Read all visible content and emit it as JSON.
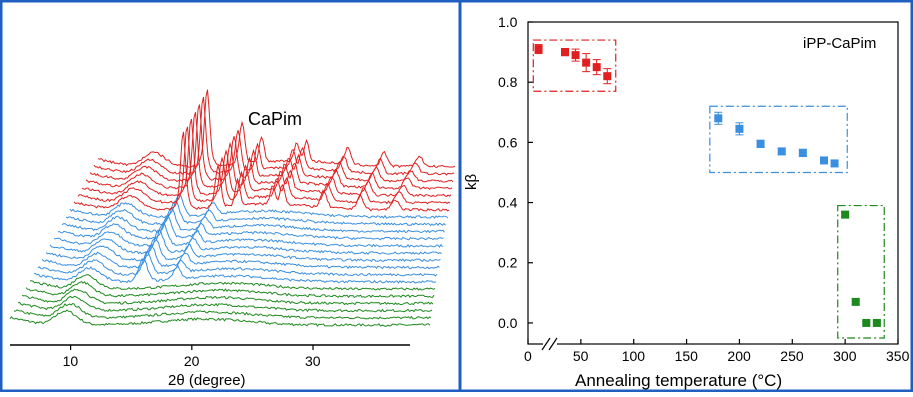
{
  "figure": {
    "frame_color": "#1f5fbf"
  },
  "colors": {
    "red": "#e02020",
    "blue": "#3a8fe0",
    "green": "#1e8a1e",
    "axis": "#000000"
  },
  "chart_data": [
    {
      "type": "line",
      "subtype": "stacked waterfall xrd patterns",
      "title": "CaPim",
      "xlabel": "2θ (degree)",
      "ylabel": "",
      "x_ticks": [
        10,
        20,
        30
      ],
      "xlim": [
        5,
        38
      ],
      "y_ticks": [],
      "series": [
        {
          "color": "red",
          "count": 7,
          "description": "Crystalline patterns with sharp peaks near 2θ≈14, 17, 18.5, 21.5, 22, 25.5, 28.5"
        },
        {
          "color": "blue",
          "count": 10,
          "description": "Amorphous-like halos with small peaks near 2θ≈14, 17"
        },
        {
          "color": "green",
          "count": 6,
          "description": "Amorphous halos with peak near 2θ≈14"
        }
      ]
    },
    {
      "type": "scatter",
      "title": "iPP-CaPim",
      "xlabel": "Annealing temperature (°C)",
      "ylabel": "kβ",
      "xlim": [
        0,
        350
      ],
      "ylim": [
        -0.07,
        1.0
      ],
      "x_ticks": [
        0,
        50,
        100,
        150,
        200,
        250,
        300,
        350
      ],
      "y_ticks": [
        0.0,
        0.2,
        0.4,
        0.6,
        0.8,
        1.0
      ],
      "axis_break": "x between 0 and 30",
      "groups": [
        {
          "color": "red",
          "points": [
            {
              "x": 10,
              "y": 0.91,
              "err": 0.015
            },
            {
              "x": 35,
              "y": 0.9,
              "err": 0.012
            },
            {
              "x": 45,
              "y": 0.89,
              "err": 0.02
            },
            {
              "x": 55,
              "y": 0.865,
              "err": 0.03
            },
            {
              "x": 65,
              "y": 0.85,
              "err": 0.025
            },
            {
              "x": 75,
              "y": 0.82,
              "err": 0.025
            }
          ],
          "box": {
            "x0": 5,
            "x1": 83,
            "y0": 0.77,
            "y1": 0.94
          }
        },
        {
          "color": "blue",
          "points": [
            {
              "x": 180,
              "y": 0.68,
              "err": 0.02
            },
            {
              "x": 200,
              "y": 0.645,
              "err": 0.02
            },
            {
              "x": 220,
              "y": 0.595,
              "err": 0.012
            },
            {
              "x": 240,
              "y": 0.57,
              "err": 0.01
            },
            {
              "x": 260,
              "y": 0.565,
              "err": 0.012
            },
            {
              "x": 280,
              "y": 0.54,
              "err": 0.01
            },
            {
              "x": 290,
              "y": 0.53,
              "err": 0.01
            }
          ],
          "box": {
            "x0": 172,
            "x1": 302,
            "y0": 0.5,
            "y1": 0.72
          }
        },
        {
          "color": "green",
          "points": [
            {
              "x": 300,
              "y": 0.36,
              "err": 0.01
            },
            {
              "x": 310,
              "y": 0.07,
              "err": 0.01
            },
            {
              "x": 320,
              "y": 0.0,
              "err": 0.006
            },
            {
              "x": 330,
              "y": 0.0,
              "err": 0.006
            }
          ],
          "box": {
            "x0": 293,
            "x1": 337,
            "y0": -0.05,
            "y1": 0.39
          }
        }
      ]
    }
  ]
}
